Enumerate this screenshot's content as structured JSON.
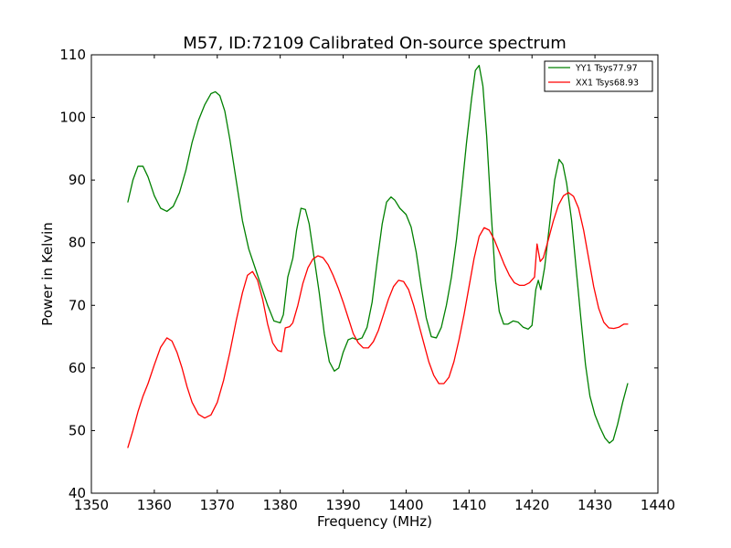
{
  "chart_data": {
    "type": "line",
    "title": "M57, ID:72109 Calibrated On-source spectrum",
    "xlabel": "Frequency (MHz)",
    "ylabel": "Power in Kelvin",
    "xlim": [
      1350,
      1440
    ],
    "ylim": [
      40,
      110
    ],
    "xticks": [
      1350,
      1360,
      1370,
      1380,
      1390,
      1400,
      1410,
      1420,
      1430,
      1440
    ],
    "yticks": [
      40,
      50,
      60,
      70,
      80,
      90,
      100,
      110
    ],
    "grid": false,
    "legend_position": "top-right",
    "series": [
      {
        "name": "YY1 Tsys77.97",
        "color": "#008000",
        "points": [
          [
            1355.8,
            86.5
          ],
          [
            1356.6,
            90.0
          ],
          [
            1357.4,
            92.2
          ],
          [
            1358.2,
            92.2
          ],
          [
            1359.0,
            90.5
          ],
          [
            1360.0,
            87.5
          ],
          [
            1361.0,
            85.5
          ],
          [
            1362.0,
            85.0
          ],
          [
            1363.0,
            85.8
          ],
          [
            1364.0,
            88.0
          ],
          [
            1365.0,
            91.5
          ],
          [
            1366.0,
            96.0
          ],
          [
            1367.0,
            99.5
          ],
          [
            1368.0,
            102.0
          ],
          [
            1369.0,
            103.8
          ],
          [
            1369.7,
            104.1
          ],
          [
            1370.4,
            103.5
          ],
          [
            1371.2,
            101.0
          ],
          [
            1372.0,
            96.5
          ],
          [
            1373.0,
            90.0
          ],
          [
            1374.0,
            83.5
          ],
          [
            1375.0,
            79.0
          ],
          [
            1376.0,
            76.0
          ],
          [
            1377.0,
            73.0
          ],
          [
            1378.0,
            70.0
          ],
          [
            1379.0,
            67.5
          ],
          [
            1380.0,
            67.2
          ],
          [
            1380.5,
            68.5
          ],
          [
            1381.2,
            74.5
          ],
          [
            1382.0,
            77.5
          ],
          [
            1382.6,
            82.0
          ],
          [
            1383.3,
            85.5
          ],
          [
            1384.0,
            85.3
          ],
          [
            1384.6,
            83.0
          ],
          [
            1385.4,
            77.5
          ],
          [
            1386.2,
            72.0
          ],
          [
            1387.0,
            65.5
          ],
          [
            1387.8,
            61.0
          ],
          [
            1388.6,
            59.5
          ],
          [
            1389.3,
            60.0
          ],
          [
            1390.0,
            62.5
          ],
          [
            1390.8,
            64.5
          ],
          [
            1391.5,
            64.8
          ],
          [
            1392.2,
            64.5
          ],
          [
            1393.0,
            64.8
          ],
          [
            1393.8,
            66.5
          ],
          [
            1394.6,
            70.5
          ],
          [
            1395.4,
            77.0
          ],
          [
            1396.2,
            83.0
          ],
          [
            1396.9,
            86.5
          ],
          [
            1397.6,
            87.3
          ],
          [
            1398.2,
            86.8
          ],
          [
            1399.0,
            85.5
          ],
          [
            1400.0,
            84.5
          ],
          [
            1400.8,
            82.5
          ],
          [
            1401.6,
            78.5
          ],
          [
            1402.4,
            73.0
          ],
          [
            1403.2,
            68.0
          ],
          [
            1404.0,
            65.0
          ],
          [
            1404.8,
            64.8
          ],
          [
            1405.6,
            66.5
          ],
          [
            1406.4,
            70.0
          ],
          [
            1407.2,
            74.5
          ],
          [
            1408.0,
            80.5
          ],
          [
            1408.8,
            88.0
          ],
          [
            1409.6,
            96.0
          ],
          [
            1410.4,
            103.0
          ],
          [
            1411.0,
            107.5
          ],
          [
            1411.6,
            108.3
          ],
          [
            1412.2,
            105.0
          ],
          [
            1412.8,
            97.0
          ],
          [
            1413.5,
            85.0
          ],
          [
            1414.2,
            74.0
          ],
          [
            1414.8,
            69.0
          ],
          [
            1415.5,
            67.0
          ],
          [
            1416.2,
            67.0
          ],
          [
            1417.0,
            67.5
          ],
          [
            1417.8,
            67.3
          ],
          [
            1418.6,
            66.5
          ],
          [
            1419.4,
            66.2
          ],
          [
            1420.0,
            66.8
          ],
          [
            1420.6,
            72.5
          ],
          [
            1421.0,
            74.0
          ],
          [
            1421.4,
            72.5
          ],
          [
            1422.0,
            76.0
          ],
          [
            1422.8,
            83.0
          ],
          [
            1423.6,
            90.0
          ],
          [
            1424.3,
            93.3
          ],
          [
            1424.9,
            92.5
          ],
          [
            1425.5,
            89.5
          ],
          [
            1426.3,
            83.5
          ],
          [
            1427.0,
            76.0
          ],
          [
            1427.8,
            67.5
          ],
          [
            1428.5,
            60.5
          ],
          [
            1429.2,
            55.5
          ],
          [
            1430.0,
            52.5
          ],
          [
            1430.8,
            50.5
          ],
          [
            1431.6,
            48.8
          ],
          [
            1432.3,
            48.0
          ],
          [
            1432.9,
            48.5
          ],
          [
            1433.6,
            51.0
          ],
          [
            1434.4,
            54.5
          ],
          [
            1435.2,
            57.5
          ]
        ]
      },
      {
        "name": "XX1 Tsys68.93",
        "color": "#ff0000",
        "points": [
          [
            1355.8,
            47.3
          ],
          [
            1356.6,
            50.0
          ],
          [
            1357.4,
            53.0
          ],
          [
            1358.2,
            55.5
          ],
          [
            1359.0,
            57.5
          ],
          [
            1360.0,
            60.5
          ],
          [
            1361.0,
            63.3
          ],
          [
            1362.0,
            64.8
          ],
          [
            1362.8,
            64.3
          ],
          [
            1363.6,
            62.5
          ],
          [
            1364.4,
            60.0
          ],
          [
            1365.2,
            57.0
          ],
          [
            1366.0,
            54.5
          ],
          [
            1367.0,
            52.6
          ],
          [
            1368.0,
            52.0
          ],
          [
            1369.0,
            52.5
          ],
          [
            1370.0,
            54.5
          ],
          [
            1371.0,
            58.0
          ],
          [
            1372.0,
            62.5
          ],
          [
            1373.0,
            67.5
          ],
          [
            1374.0,
            72.0
          ],
          [
            1374.8,
            74.8
          ],
          [
            1375.6,
            75.4
          ],
          [
            1376.4,
            74.0
          ],
          [
            1377.2,
            71.0
          ],
          [
            1378.0,
            67.0
          ],
          [
            1378.8,
            64.0
          ],
          [
            1379.6,
            62.8
          ],
          [
            1380.2,
            62.6
          ],
          [
            1380.8,
            66.4
          ],
          [
            1381.5,
            66.6
          ],
          [
            1382.0,
            67.2
          ],
          [
            1382.8,
            70.0
          ],
          [
            1383.6,
            73.5
          ],
          [
            1384.4,
            76.0
          ],
          [
            1385.2,
            77.4
          ],
          [
            1386.0,
            77.9
          ],
          [
            1386.8,
            77.6
          ],
          [
            1387.6,
            76.5
          ],
          [
            1388.4,
            74.8
          ],
          [
            1389.2,
            72.8
          ],
          [
            1390.0,
            70.5
          ],
          [
            1390.8,
            68.0
          ],
          [
            1391.6,
            65.5
          ],
          [
            1392.4,
            64.0
          ],
          [
            1393.2,
            63.2
          ],
          [
            1394.0,
            63.2
          ],
          [
            1394.8,
            64.2
          ],
          [
            1395.6,
            66.0
          ],
          [
            1396.4,
            68.5
          ],
          [
            1397.2,
            71.0
          ],
          [
            1398.0,
            73.0
          ],
          [
            1398.8,
            74.0
          ],
          [
            1399.6,
            73.8
          ],
          [
            1400.4,
            72.5
          ],
          [
            1401.2,
            70.0
          ],
          [
            1402.0,
            67.0
          ],
          [
            1402.8,
            64.0
          ],
          [
            1403.6,
            61.0
          ],
          [
            1404.4,
            58.8
          ],
          [
            1405.2,
            57.5
          ],
          [
            1406.0,
            57.5
          ],
          [
            1406.8,
            58.5
          ],
          [
            1407.6,
            61.0
          ],
          [
            1408.4,
            64.5
          ],
          [
            1409.2,
            68.5
          ],
          [
            1410.0,
            73.0
          ],
          [
            1410.8,
            77.5
          ],
          [
            1411.6,
            81.0
          ],
          [
            1412.4,
            82.4
          ],
          [
            1413.2,
            82.0
          ],
          [
            1414.0,
            80.5
          ],
          [
            1414.8,
            78.5
          ],
          [
            1415.6,
            76.5
          ],
          [
            1416.4,
            74.8
          ],
          [
            1417.2,
            73.6
          ],
          [
            1418.0,
            73.2
          ],
          [
            1418.8,
            73.2
          ],
          [
            1419.6,
            73.6
          ],
          [
            1420.4,
            74.5
          ],
          [
            1420.8,
            79.8
          ],
          [
            1421.3,
            77.0
          ],
          [
            1421.8,
            77.6
          ],
          [
            1422.6,
            80.5
          ],
          [
            1423.4,
            83.5
          ],
          [
            1424.2,
            86.0
          ],
          [
            1425.0,
            87.5
          ],
          [
            1425.8,
            88.0
          ],
          [
            1426.6,
            87.4
          ],
          [
            1427.4,
            85.5
          ],
          [
            1428.2,
            82.0
          ],
          [
            1429.0,
            77.5
          ],
          [
            1429.8,
            73.0
          ],
          [
            1430.6,
            69.5
          ],
          [
            1431.4,
            67.3
          ],
          [
            1432.2,
            66.4
          ],
          [
            1433.0,
            66.3
          ],
          [
            1433.8,
            66.5
          ],
          [
            1434.6,
            67.0
          ],
          [
            1435.2,
            67.0
          ]
        ]
      }
    ]
  }
}
